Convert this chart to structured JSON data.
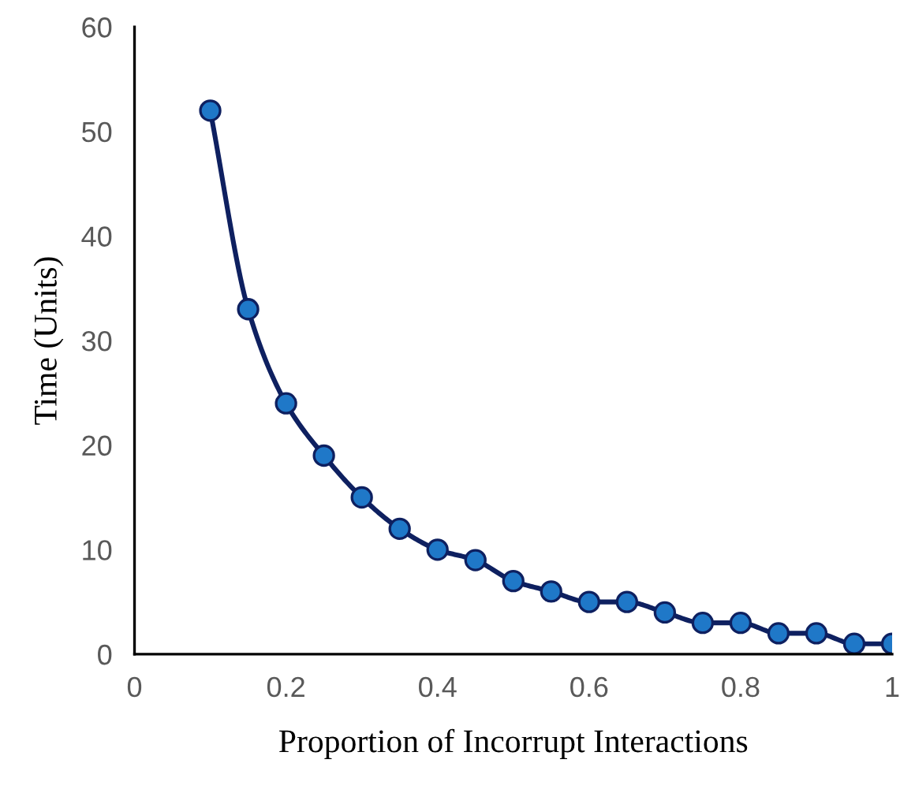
{
  "chart_data": {
    "type": "line",
    "xlabel": "Proportion of Incorrupt Interactions",
    "ylabel": "Time (Units)",
    "x": [
      0.1,
      0.15,
      0.2,
      0.25,
      0.3,
      0.35,
      0.4,
      0.45,
      0.5,
      0.55,
      0.6,
      0.65,
      0.7,
      0.75,
      0.8,
      0.85,
      0.9,
      0.95,
      1
    ],
    "series": [
      {
        "color": "#0e2060",
        "values": [
          52,
          33,
          24,
          19,
          15,
          12,
          10,
          9,
          7,
          6,
          5,
          5,
          4,
          3,
          3,
          2,
          2,
          1,
          1
        ]
      }
    ],
    "xlim": [
      0,
      1
    ],
    "xticks": [
      0,
      0.2,
      0.4,
      0.6,
      0.8,
      1
    ],
    "ylim": [
      0,
      60
    ],
    "yticks": [
      0,
      10,
      20,
      30,
      40,
      50,
      60
    ],
    "marker": "circle",
    "line_style": "solid",
    "grid": false,
    "legend": false
  }
}
